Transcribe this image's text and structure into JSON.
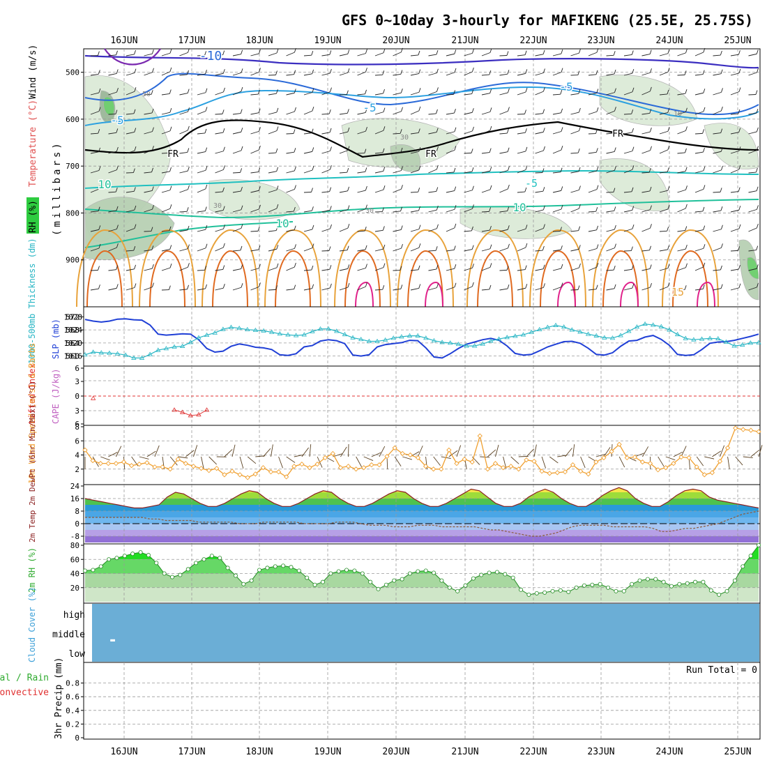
{
  "title": "GFS 0~10day 3-hourly for MAFIKENG (25.5E, 25.75S)",
  "dates": [
    "16JUN",
    "17JUN",
    "18JUN",
    "19JUN",
    "20JUN",
    "21JUN",
    "22JUN",
    "23JUN",
    "24JUN",
    "25JUN"
  ],
  "colors": {
    "rh_band": "#2ecc40",
    "cloud_fill": "#6baed6",
    "thickness_line": "#26b5c4",
    "slp_line": "#1f3fd6",
    "wind10m_line": "#f0a030",
    "rh2m_line": "#228b22",
    "freezing_line": "#000000",
    "lifted_zero": "#e03030"
  },
  "chart_data": [
    {
      "panel": "upper-air",
      "type": "contour",
      "ylabel_parts": [
        "RH (%)",
        "Temperature (°C)",
        "Wind (m/s)"
      ],
      "ylabel_right": "(millibars)",
      "y_ticks": [
        500,
        600,
        700,
        800,
        900
      ],
      "ylim": [
        1000,
        450
      ],
      "contour_labels": [
        "-10",
        "-5",
        "-5",
        "-5",
        "FR",
        "FR",
        "FR",
        "-5",
        "10",
        "10",
        "10",
        "15"
      ],
      "rh_labels": [
        "50",
        "30",
        "30",
        "30",
        "10"
      ]
    },
    {
      "panel": "thickness-slp",
      "type": "line",
      "ylabel_left": "1000-500mb Thickness (dm)",
      "ylabel_right": "SLP (mb)",
      "left_ticks": [
        560,
        564,
        568,
        572
      ],
      "right_ticks": [
        1016,
        1020,
        1024,
        1028
      ],
      "series": [
        {
          "name": "1000-500mb Thickness",
          "values": [
            560.4,
            561.2,
            561.0,
            560.9,
            560.7,
            560.3,
            559.4,
            559.4,
            560.5,
            561.8,
            562.3,
            562.8,
            563.0,
            564.2,
            565.6,
            566.4,
            567.1,
            568.2,
            568.8,
            568.5,
            568.1,
            567.9,
            567.7,
            567.3,
            566.8,
            566.5,
            566.3,
            566.5,
            567.5,
            568.3,
            568.3,
            567.6,
            566.6,
            565.6,
            565.1,
            564.5,
            564.5,
            564.9,
            565.5,
            565.9,
            566.2,
            566.2,
            565.5,
            564.7,
            564.2,
            564.0,
            563.6,
            563.1,
            563.1,
            563.7,
            564.6,
            565.2,
            565.7,
            566.1,
            566.5,
            567.3,
            568.1,
            568.8,
            569.4,
            568.9,
            568.0,
            567.4,
            566.7,
            566.2,
            565.6,
            565.5,
            566.3,
            567.6,
            568.9,
            569.8,
            569.5,
            569.0,
            568.0,
            566.6,
            565.4,
            565.0,
            565.2,
            565.4,
            565.3,
            564.3,
            563.1,
            563.4,
            564.0,
            564.1
          ]
        },
        {
          "name": "SLP",
          "values": [
            1027.2,
            1026.7,
            1026.4,
            1026.7,
            1027.3,
            1027.4,
            1027.1,
            1027.0,
            1025.5,
            1022.7,
            1022.4,
            1022.6,
            1022.8,
            1022.7,
            1021.0,
            1018.3,
            1017.2,
            1017.5,
            1019.0,
            1019.7,
            1019.3,
            1018.7,
            1018.5,
            1018.0,
            1016.4,
            1016.2,
            1016.7,
            1018.8,
            1019.2,
            1020.6,
            1021.0,
            1020.7,
            1019.8,
            1016.3,
            1016.0,
            1016.4,
            1018.8,
            1019.5,
            1019.8,
            1020.1,
            1020.8,
            1020.7,
            1018.5,
            1015.7,
            1015.4,
            1016.7,
            1018.3,
            1019.6,
            1020.3,
            1021.0,
            1021.4,
            1020.8,
            1019.1,
            1016.8,
            1016.3,
            1016.5,
            1017.6,
            1018.8,
            1019.6,
            1020.4,
            1020.5,
            1019.9,
            1018.4,
            1016.5,
            1016.3,
            1017.0,
            1019.0,
            1020.6,
            1020.8,
            1021.8,
            1022.3,
            1021.1,
            1019.3,
            1016.5,
            1016.2,
            1016.4,
            1018.0,
            1019.9,
            1020.3,
            1020.4,
            1020.8,
            1021.4,
            1022.0,
            1022.7
          ]
        }
      ]
    },
    {
      "panel": "stability",
      "type": "line",
      "ylabel_left": "Lifted Index",
      "ylabel_right": "CAPE (J/kg)",
      "y_ticks": [
        "6",
        "3",
        "0",
        "3",
        "6"
      ],
      "series": [
        {
          "name": "Lifted Index",
          "values": [
            null,
            5.5,
            null,
            null,
            null,
            null,
            null,
            null,
            null,
            null,
            null,
            3.0,
            2.5,
            1.8,
            2.0,
            3.0,
            null,
            null,
            null,
            null,
            null,
            null,
            null,
            null,
            null,
            null,
            null,
            null,
            null,
            null,
            null,
            null,
            null,
            null,
            null,
            null,
            null,
            null,
            null,
            null,
            null,
            null,
            null,
            null,
            null,
            null,
            null,
            null,
            null,
            null,
            null,
            null,
            null,
            null,
            null,
            null,
            null,
            null,
            null,
            null,
            null,
            null,
            null,
            null,
            null,
            null,
            null,
            null,
            null,
            null,
            null,
            null,
            null,
            null,
            null,
            null,
            null,
            null,
            null,
            null,
            null,
            null,
            null,
            null
          ]
        }
      ]
    },
    {
      "panel": "wind-10m",
      "type": "line",
      "ylabel": "10m Wind Speed (m/s) & Barbs",
      "y_ticks": [
        2,
        4,
        6,
        8
      ],
      "ylim": [
        0,
        8
      ],
      "series": [
        {
          "name": "10m Wind Speed",
          "values": [
            4.7,
            3.2,
            2.8,
            2.8,
            2.8,
            3.0,
            2.5,
            2.7,
            2.9,
            2.3,
            2.3,
            2.0,
            3.4,
            2.8,
            2.4,
            2.1,
            1.8,
            2.1,
            1.2,
            1.7,
            1.2,
            0.8,
            1.3,
            2.2,
            1.6,
            1.6,
            0.9,
            2.4,
            2.7,
            2.2,
            2.7,
            3.6,
            4.2,
            2.2,
            2.4,
            2.0,
            2.2,
            2.6,
            2.6,
            3.8,
            5.0,
            4.2,
            4.0,
            3.6,
            2.4,
            2.0,
            2.0,
            4.7,
            2.8,
            3.4,
            3.0,
            6.7,
            2.0,
            2.8,
            2.2,
            2.4,
            2.0,
            3.3,
            3.1,
            1.7,
            1.4,
            1.5,
            1.6,
            2.6,
            1.7,
            1.3,
            3.0,
            3.6,
            4.5,
            5.5,
            3.6,
            3.7,
            3.0,
            2.8,
            1.9,
            2.2,
            2.8,
            3.7,
            3.6,
            2.3,
            1.2,
            1.5,
            3.1,
            5.0,
            7.8,
            7.6,
            7.5,
            7.3
          ]
        }
      ]
    },
    {
      "panel": "temperature-2m",
      "type": "area",
      "ylabel": "2m Temp 2m DewPt (6hr Min/Max) (°C)",
      "y_ticks": [
        -8,
        0,
        8,
        16,
        24
      ],
      "ylim": [
        -12,
        24
      ],
      "series": [
        {
          "name": "2m Temp",
          "values": [
            16,
            15,
            14,
            13,
            12,
            11,
            10,
            10,
            11,
            12,
            17,
            20,
            19,
            16,
            13,
            11,
            11,
            13,
            16,
            19,
            21,
            20,
            16,
            13,
            11,
            11,
            13,
            16,
            19,
            21,
            20,
            16,
            13,
            11,
            11,
            13,
            16,
            19,
            21,
            20,
            16,
            13,
            11,
            11,
            13,
            16,
            19,
            22,
            21,
            17,
            13,
            11,
            11,
            13,
            17,
            20,
            22,
            20,
            16,
            13,
            11,
            11,
            14,
            18,
            21,
            23,
            21,
            16,
            13,
            11,
            11,
            14,
            18,
            21,
            22,
            21,
            17,
            15,
            14,
            13,
            12,
            11,
            10
          ]
        },
        {
          "name": "2m DewPt",
          "values": [
            4,
            4,
            4,
            4,
            4,
            4,
            4,
            4,
            3,
            3,
            2,
            2,
            2,
            2,
            1,
            1,
            1,
            1,
            1,
            0,
            0,
            0,
            1,
            1,
            1,
            1,
            1,
            0,
            0,
            0,
            0,
            1,
            1,
            1,
            0,
            -1,
            -1,
            -1,
            -2,
            -2,
            -2,
            -1,
            -1,
            -1,
            -2,
            -2,
            -2,
            -2,
            -2,
            -3,
            -4,
            -4,
            -5,
            -6,
            -7,
            -8,
            -8,
            -7,
            -6,
            -4,
            -2,
            -1,
            -1,
            -1,
            -1,
            -2,
            -2,
            -2,
            -2,
            -2,
            -3,
            -5,
            -5,
            -4,
            -3,
            -3,
            -2,
            -1,
            0,
            2,
            4,
            6,
            7,
            8
          ]
        }
      ]
    },
    {
      "panel": "rh-2m",
      "type": "area",
      "ylabel": "2m RH (%)",
      "y_ticks": [
        20,
        40,
        60,
        80
      ],
      "ylim": [
        0,
        80
      ],
      "series": [
        {
          "name": "2m RH",
          "values": [
            44,
            45,
            50,
            60,
            62,
            65,
            68,
            70,
            66,
            55,
            40,
            35,
            38,
            46,
            55,
            60,
            65,
            62,
            48,
            37,
            25,
            30,
            45,
            48,
            50,
            51,
            49,
            44,
            34,
            24,
            28,
            40,
            43,
            45,
            44,
            40,
            28,
            18,
            24,
            30,
            32,
            40,
            43,
            44,
            41,
            30,
            20,
            15,
            23,
            33,
            38,
            41,
            42,
            39,
            34,
            17,
            10,
            12,
            13,
            15,
            16,
            14,
            20,
            23,
            24,
            25,
            20,
            15,
            15,
            25,
            30,
            32,
            32,
            28,
            22,
            25,
            26,
            28,
            28,
            16,
            10,
            15,
            30,
            50,
            65,
            80
          ]
        }
      ]
    },
    {
      "panel": "cloud-cover",
      "type": "heatmap",
      "ylabel": "Cloud Cover (%)",
      "levels": [
        "high",
        "middle",
        "low"
      ],
      "marker": "-"
    },
    {
      "panel": "precipitation",
      "type": "bar",
      "ylabel_left_parts": [
        "tal / Rain",
        "Convective"
      ],
      "ylabel": "3hr Precip (mm)",
      "y_ticks": [
        "0",
        "0.2",
        "0.4",
        "0.6",
        "0.8"
      ],
      "ylim": [
        0,
        1
      ],
      "run_total": "Run Total = 0",
      "values": []
    }
  ]
}
